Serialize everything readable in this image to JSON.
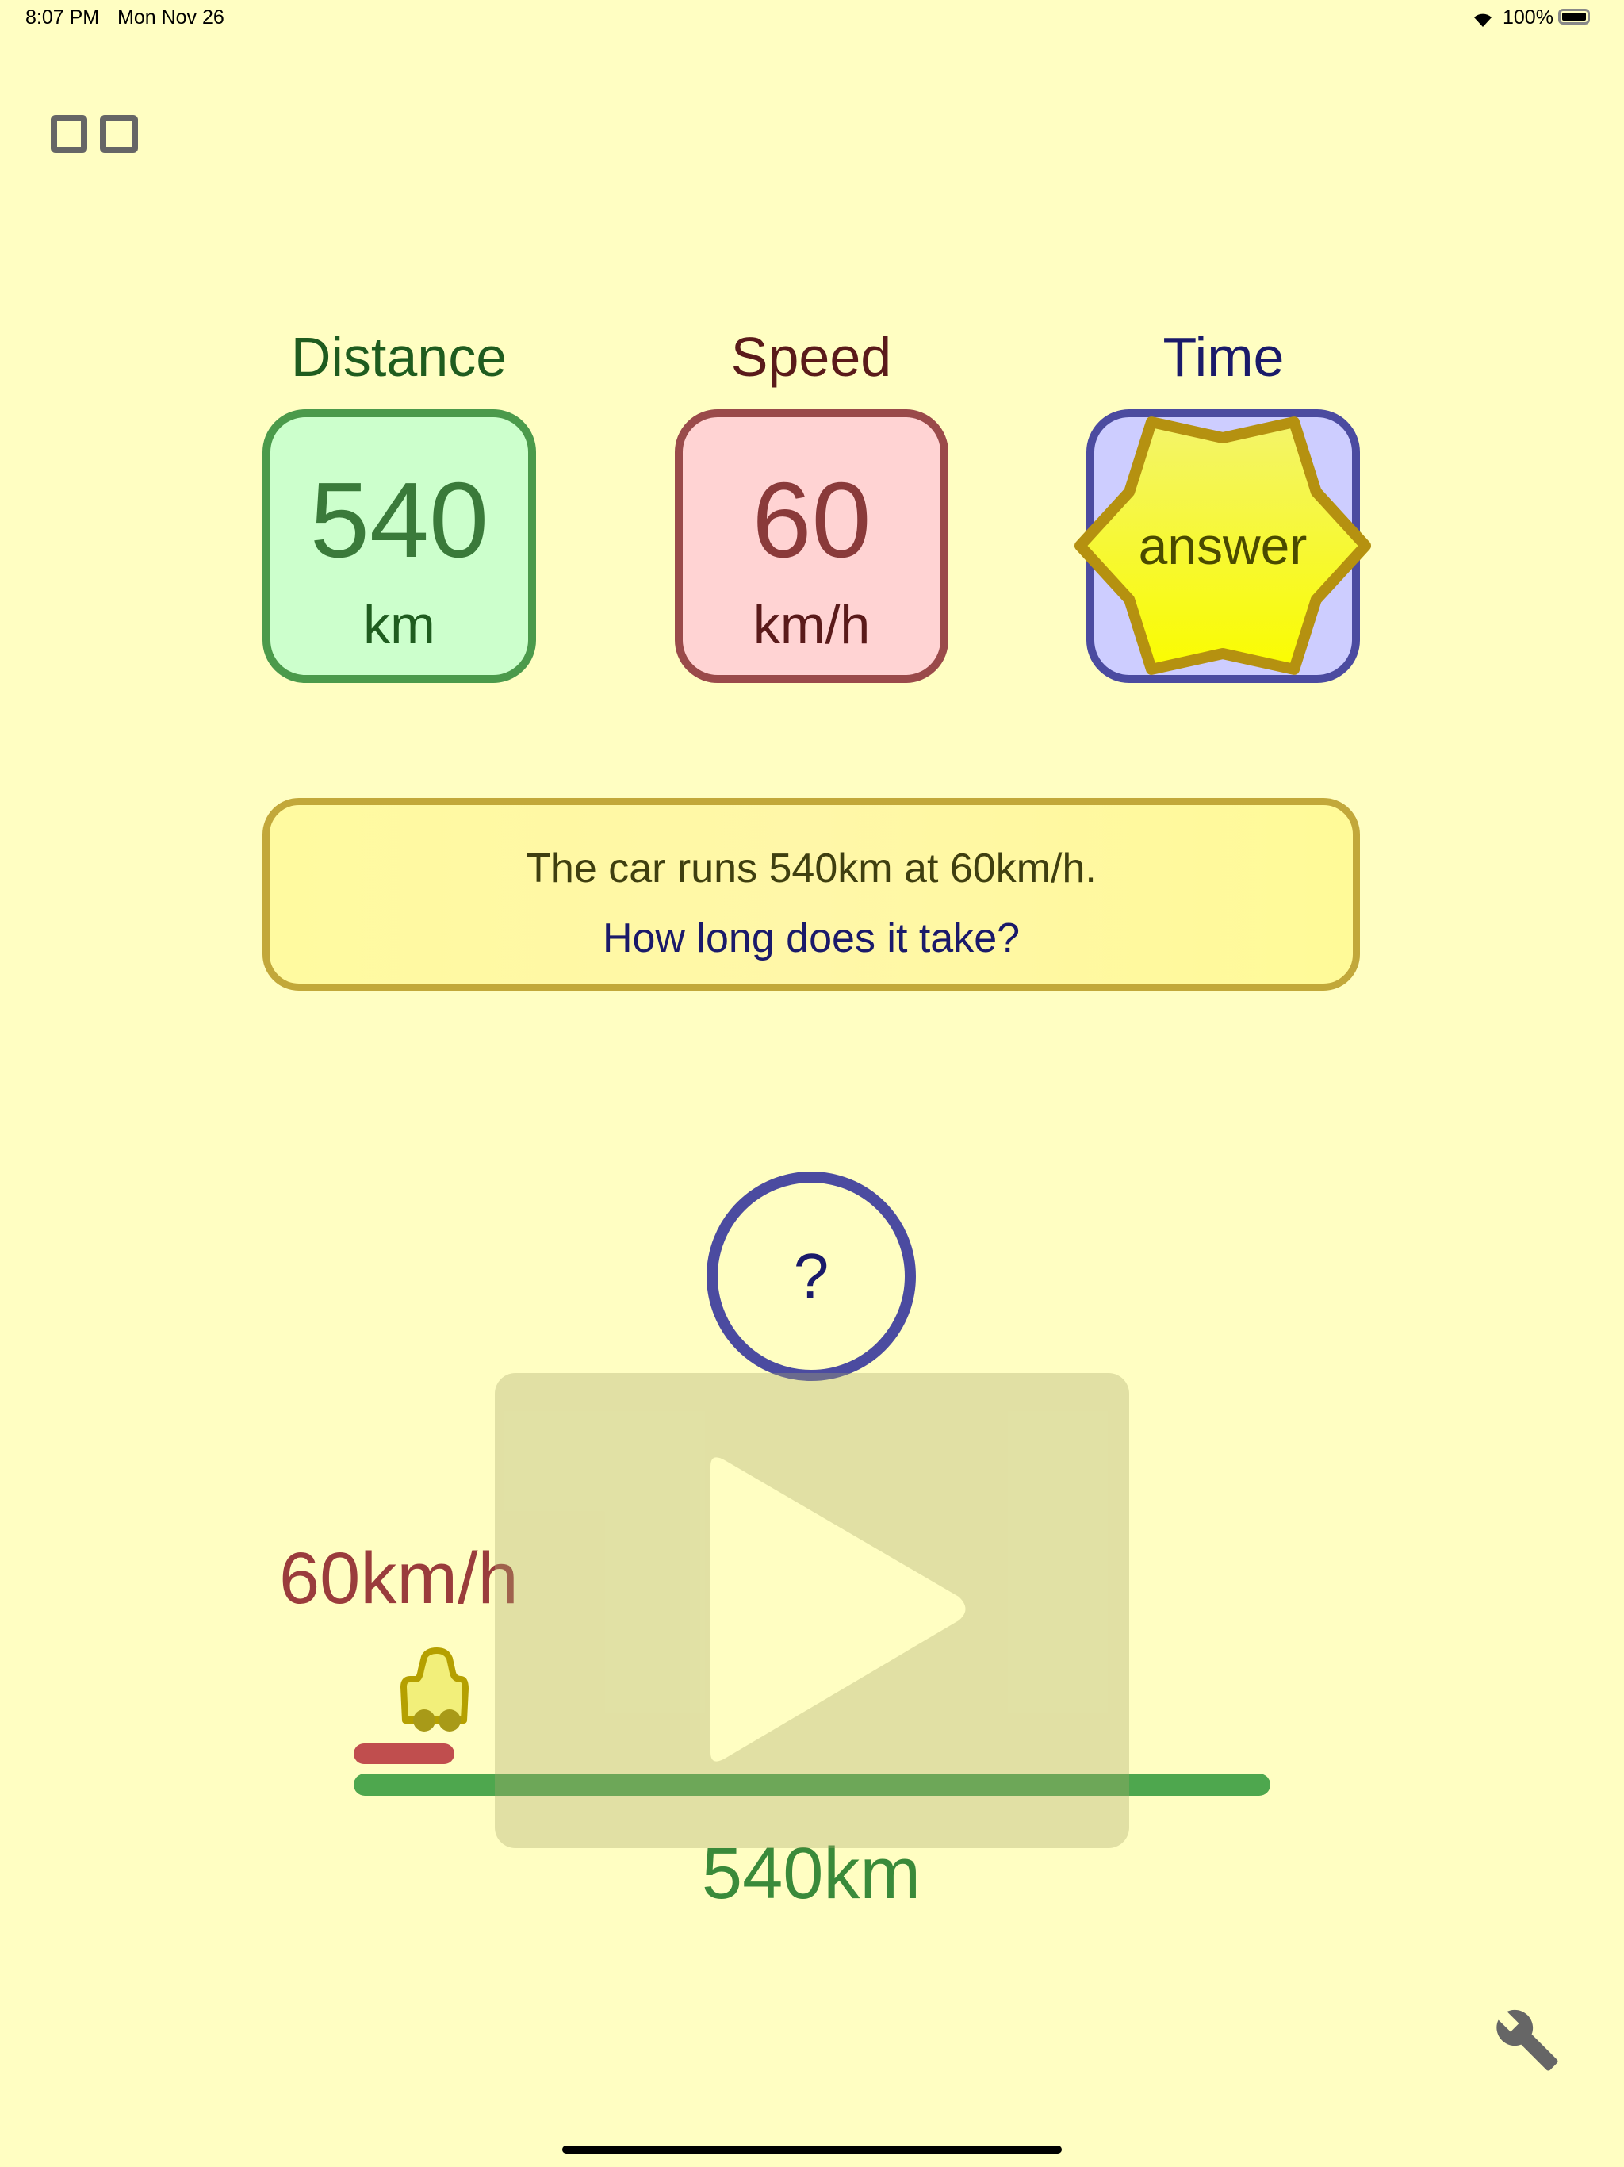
{
  "status_bar": {
    "time": "8:07 PM",
    "date": "Mon Nov 26",
    "battery": "100%"
  },
  "top": {
    "layout_icon": "two-squares-icon"
  },
  "cards": [
    {
      "label": "Distance",
      "value": "540",
      "unit": "km",
      "color": "#4b9a4b",
      "fill": "#ccffcc"
    },
    {
      "label": "Speed",
      "value": "60",
      "unit": "km/h",
      "color": "#9a4a4a",
      "fill": "#ffd3d3"
    },
    {
      "label": "Time",
      "answer": "answer",
      "color": "#4b4ba0",
      "fill": "#cdcdff"
    }
  ],
  "question": {
    "line1": "The car runs 540km at 60km/h.",
    "line2": "How long does it take?"
  },
  "animation": {
    "time_circle": "?",
    "speed_label": "60km/h",
    "distance_label": "540km",
    "progress": 0.11,
    "play_icon": "play-icon"
  },
  "bottom": {
    "settings_icon": "wrench-icon"
  }
}
